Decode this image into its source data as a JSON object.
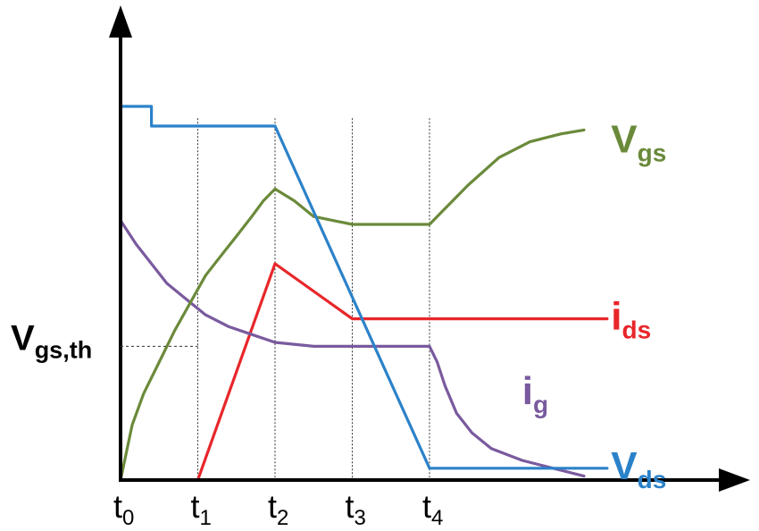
{
  "chart_data": {
    "type": "line",
    "xlabel": "",
    "ylabel": "",
    "grid": false,
    "x_ticks": [
      {
        "base": "t",
        "sub": "0",
        "x": 0
      },
      {
        "base": "t",
        "sub": "1",
        "x": 1
      },
      {
        "base": "t",
        "sub": "2",
        "x": 2
      },
      {
        "base": "t",
        "sub": "3",
        "x": 3
      },
      {
        "base": "t",
        "sub": "4",
        "x": 4
      }
    ],
    "y_markers": [
      {
        "base": "V",
        "sub": "gs,th",
        "y": 0.34
      }
    ],
    "xlim": [
      0,
      7.2
    ],
    "ylim": [
      0,
      1.1
    ],
    "series": [
      {
        "base": "V",
        "sub": "gs",
        "color": "#6a8a3a",
        "points": [
          [
            0,
            0
          ],
          [
            0.15,
            0.14
          ],
          [
            0.3,
            0.22
          ],
          [
            0.5,
            0.3
          ],
          [
            0.7,
            0.38
          ],
          [
            0.9,
            0.45
          ],
          [
            1.1,
            0.52
          ],
          [
            1.3,
            0.57
          ],
          [
            1.5,
            0.62
          ],
          [
            1.7,
            0.67
          ],
          [
            1.85,
            0.71
          ],
          [
            2,
            0.74
          ],
          [
            2.25,
            0.71
          ],
          [
            2.5,
            0.67
          ],
          [
            3,
            0.65
          ],
          [
            4,
            0.65
          ],
          [
            4.2,
            0.69
          ],
          [
            4.5,
            0.75
          ],
          [
            4.9,
            0.82
          ],
          [
            5.3,
            0.86
          ],
          [
            5.7,
            0.88
          ],
          [
            6,
            0.89
          ]
        ]
      },
      {
        "base": "i",
        "sub": "ds",
        "color": "#e8262a",
        "points": [
          [
            0,
            0
          ],
          [
            1,
            0
          ],
          [
            2,
            0.55
          ],
          [
            3,
            0.41
          ],
          [
            6.3,
            0.41
          ]
        ]
      },
      {
        "base": "i",
        "sub": "g",
        "color": "#7a5a9e",
        "points": [
          [
            0,
            0.66
          ],
          [
            0.2,
            0.6
          ],
          [
            0.4,
            0.55
          ],
          [
            0.6,
            0.5
          ],
          [
            0.85,
            0.46
          ],
          [
            1.1,
            0.42
          ],
          [
            1.4,
            0.39
          ],
          [
            1.7,
            0.37
          ],
          [
            2,
            0.35
          ],
          [
            2.5,
            0.34
          ],
          [
            4,
            0.34
          ],
          [
            4.1,
            0.3
          ],
          [
            4.2,
            0.24
          ],
          [
            4.35,
            0.17
          ],
          [
            4.55,
            0.12
          ],
          [
            4.8,
            0.08
          ],
          [
            5.2,
            0.05
          ],
          [
            5.6,
            0.03
          ],
          [
            6,
            0.01
          ]
        ]
      },
      {
        "base": "V",
        "sub": "ds",
        "color": "#2b82c9",
        "points": [
          [
            0,
            0.95
          ],
          [
            0.4,
            0.95
          ],
          [
            0.4,
            0.9
          ],
          [
            2,
            0.9
          ],
          [
            4,
            0.03
          ],
          [
            6.3,
            0.03
          ]
        ]
      }
    ],
    "label_points": [
      {
        "series": 0,
        "x": 6.35,
        "y": 0.86
      },
      {
        "series": 1,
        "x": 6.35,
        "y": 0.41
      },
      {
        "series": 2,
        "x": 5.2,
        "y": 0.22
      },
      {
        "series": 3,
        "x": 6.35,
        "y": 0.03
      }
    ]
  }
}
